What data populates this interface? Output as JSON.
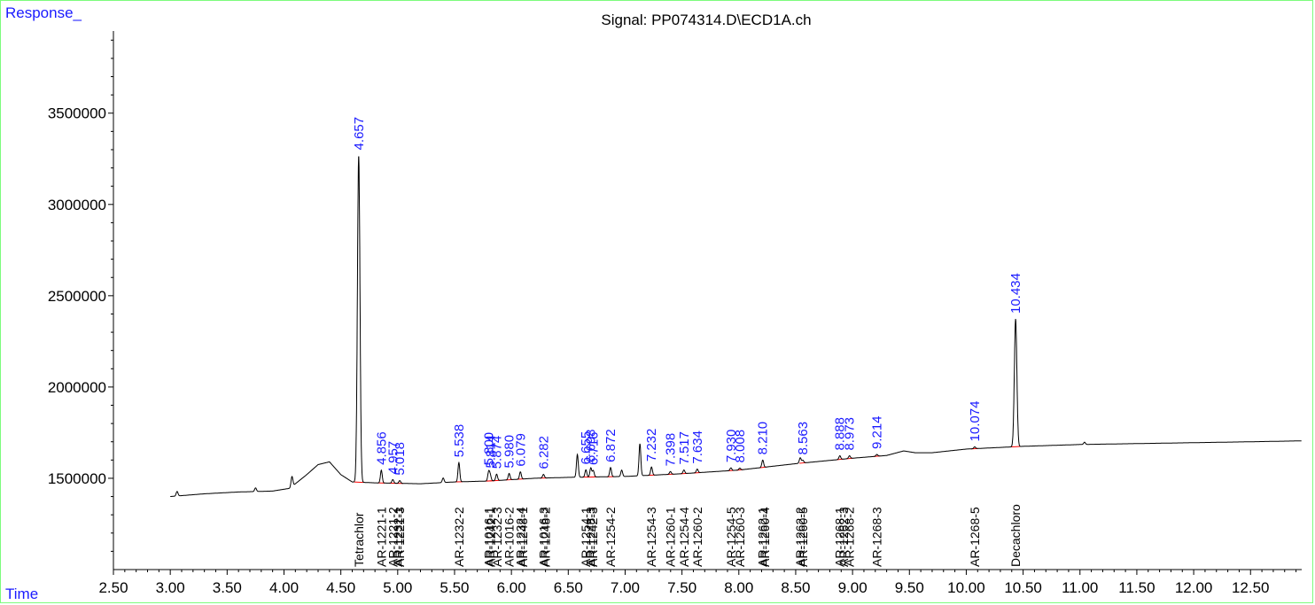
{
  "colors": {
    "trace": "#000000",
    "peak_label": "#1a1aff",
    "axis_title": "#1a1aff",
    "baseline_marker": "#ff0000",
    "frame": "#7cfc7c"
  },
  "chart_data": {
    "type": "line",
    "title": "Signal: PP074314.D\\ECD1A.ch",
    "ylabel": "Response_",
    "xlabel": "Time",
    "xlim": [
      2.5,
      12.95
    ],
    "ylim": [
      1000000,
      3950000
    ],
    "xticks": [
      "2.50",
      "3.00",
      "3.50",
      "4.00",
      "4.50",
      "5.00",
      "5.50",
      "6.00",
      "6.50",
      "7.00",
      "7.50",
      "8.00",
      "8.50",
      "9.00",
      "9.50",
      "10.00",
      "10.50",
      "11.00",
      "11.50",
      "12.00",
      "12.50"
    ],
    "yticks": [
      "1500000",
      "2000000",
      "2500000",
      "3000000",
      "3500000"
    ],
    "grid": false,
    "baseline": [
      [
        3.0,
        1400000
      ],
      [
        3.3,
        1415000
      ],
      [
        3.6,
        1425000
      ],
      [
        3.9,
        1430000
      ],
      [
        4.05,
        1445000
      ],
      [
        4.2,
        1520000
      ],
      [
        4.3,
        1575000
      ],
      [
        4.4,
        1590000
      ],
      [
        4.5,
        1520000
      ],
      [
        4.6,
        1480000
      ],
      [
        4.8,
        1475000
      ],
      [
        5.2,
        1470000
      ],
      [
        5.5,
        1480000
      ],
      [
        5.8,
        1485000
      ],
      [
        6.2,
        1500000
      ],
      [
        6.5,
        1505000
      ],
      [
        7.0,
        1510000
      ],
      [
        7.5,
        1525000
      ],
      [
        8.0,
        1545000
      ],
      [
        8.5,
        1580000
      ],
      [
        9.0,
        1610000
      ],
      [
        9.3,
        1625000
      ],
      [
        9.45,
        1650000
      ],
      [
        9.55,
        1640000
      ],
      [
        9.7,
        1640000
      ],
      [
        10.0,
        1660000
      ],
      [
        10.5,
        1675000
      ],
      [
        11.0,
        1685000
      ],
      [
        11.5,
        1690000
      ],
      [
        12.0,
        1695000
      ],
      [
        12.5,
        1700000
      ],
      [
        12.95,
        1705000
      ]
    ],
    "peaks": [
      {
        "rt": 3.06,
        "height": 25000,
        "label": ""
      },
      {
        "rt": 3.75,
        "height": 20000,
        "label": ""
      },
      {
        "rt": 4.07,
        "height": 55000,
        "label": ""
      },
      {
        "rt": 4.657,
        "height": 1790000,
        "label": "4.657"
      },
      {
        "rt": 4.856,
        "height": 70000,
        "label": "4.856"
      },
      {
        "rt": 4.957,
        "height": 20000,
        "label": "4.957"
      },
      {
        "rt": 5.018,
        "height": 15000,
        "label": "5.018"
      },
      {
        "rt": 5.4,
        "height": 25000,
        "label": ""
      },
      {
        "rt": 5.538,
        "height": 105000,
        "label": "5.538"
      },
      {
        "rt": 5.8,
        "height": 50000,
        "label": "5.800"
      },
      {
        "rt": 5.814,
        "height": 30000,
        "label": "5.814"
      },
      {
        "rt": 5.87,
        "height": 35000,
        "label": "5.874"
      },
      {
        "rt": 5.98,
        "height": 35000,
        "label": "5.980"
      },
      {
        "rt": 6.079,
        "height": 40000,
        "label": "6.079"
      },
      {
        "rt": 6.282,
        "height": 20000,
        "label": "6.282"
      },
      {
        "rt": 6.58,
        "height": 125000,
        "label": ""
      },
      {
        "rt": 6.655,
        "height": 40000,
        "label": "6.655"
      },
      {
        "rt": 6.698,
        "height": 50000,
        "label": "6.698"
      },
      {
        "rt": 6.72,
        "height": 35000,
        "label": "6.716"
      },
      {
        "rt": 6.872,
        "height": 50000,
        "label": "6.872"
      },
      {
        "rt": 6.97,
        "height": 35000,
        "label": ""
      },
      {
        "rt": 7.13,
        "height": 175000,
        "label": ""
      },
      {
        "rt": 7.232,
        "height": 45000,
        "label": "7.232"
      },
      {
        "rt": 7.398,
        "height": 15000,
        "label": "7.398"
      },
      {
        "rt": 7.517,
        "height": 20000,
        "label": "7.517"
      },
      {
        "rt": 7.634,
        "height": 20000,
        "label": "7.634"
      },
      {
        "rt": 7.93,
        "height": 15000,
        "label": "7.930"
      },
      {
        "rt": 8.008,
        "height": 10000,
        "label": "8.008"
      },
      {
        "rt": 8.21,
        "height": 40000,
        "label": "8.210"
      },
      {
        "rt": 8.54,
        "height": 30000,
        "label": ""
      },
      {
        "rt": 8.563,
        "height": 15000,
        "label": "8.563"
      },
      {
        "rt": 8.888,
        "height": 20000,
        "label": "8.888"
      },
      {
        "rt": 8.973,
        "height": 15000,
        "label": "8.973"
      },
      {
        "rt": 9.214,
        "height": 10000,
        "label": "9.214"
      },
      {
        "rt": 10.074,
        "height": 10000,
        "label": "10.074"
      },
      {
        "rt": 10.434,
        "height": 700000,
        "label": "10.434"
      },
      {
        "rt": 11.04,
        "height": 12000,
        "label": ""
      }
    ],
    "compounds": [
      {
        "rt": 4.657,
        "name": "Tetrachlor"
      },
      {
        "rt": 4.856,
        "name": "AR-1221-1"
      },
      {
        "rt": 4.957,
        "name": "AR-1221-2"
      },
      {
        "rt": 5.0,
        "name": "AR-1232-1"
      },
      {
        "rt": 5.018,
        "name": "AR-1221-3"
      },
      {
        "rt": 5.538,
        "name": "AR-1232-2"
      },
      {
        "rt": 5.8,
        "name": "AR-1016-1"
      },
      {
        "rt": 5.814,
        "name": "AR-1242-1"
      },
      {
        "rt": 5.874,
        "name": "AR-1232-3"
      },
      {
        "rt": 5.98,
        "name": "AR-1016-2"
      },
      {
        "rt": 6.079,
        "name": "AR-1232-4"
      },
      {
        "rt": 6.1,
        "name": "AR-1248-1"
      },
      {
        "rt": 6.282,
        "name": "AR-1016-3"
      },
      {
        "rt": 6.3,
        "name": "AR-1248-2"
      },
      {
        "rt": 6.655,
        "name": "AR-1254-1"
      },
      {
        "rt": 6.698,
        "name": "AR-1248-3"
      },
      {
        "rt": 6.716,
        "name": "AR-1242-3"
      },
      {
        "rt": 6.872,
        "name": "AR-1254-2"
      },
      {
        "rt": 7.232,
        "name": "AR-1254-3"
      },
      {
        "rt": 7.398,
        "name": "AR-1260-1"
      },
      {
        "rt": 7.517,
        "name": "AR-1254-4"
      },
      {
        "rt": 7.634,
        "name": "AR-1260-2"
      },
      {
        "rt": 7.93,
        "name": "AR-1254-5"
      },
      {
        "rt": 8.008,
        "name": "AR-1260-3"
      },
      {
        "rt": 8.21,
        "name": "AR-1262-1"
      },
      {
        "rt": 8.228,
        "name": "AR-1260-4"
      },
      {
        "rt": 8.54,
        "name": "AR-1262-2"
      },
      {
        "rt": 8.563,
        "name": "AR-1260-5"
      },
      {
        "rt": 8.888,
        "name": "AR-1268-1"
      },
      {
        "rt": 8.92,
        "name": "AR-1262-3"
      },
      {
        "rt": 8.973,
        "name": "AR-1268-2"
      },
      {
        "rt": 9.214,
        "name": "AR-1268-3"
      },
      {
        "rt": 10.074,
        "name": "AR-1268-5"
      },
      {
        "rt": 10.434,
        "name": "Decachloro"
      }
    ]
  }
}
